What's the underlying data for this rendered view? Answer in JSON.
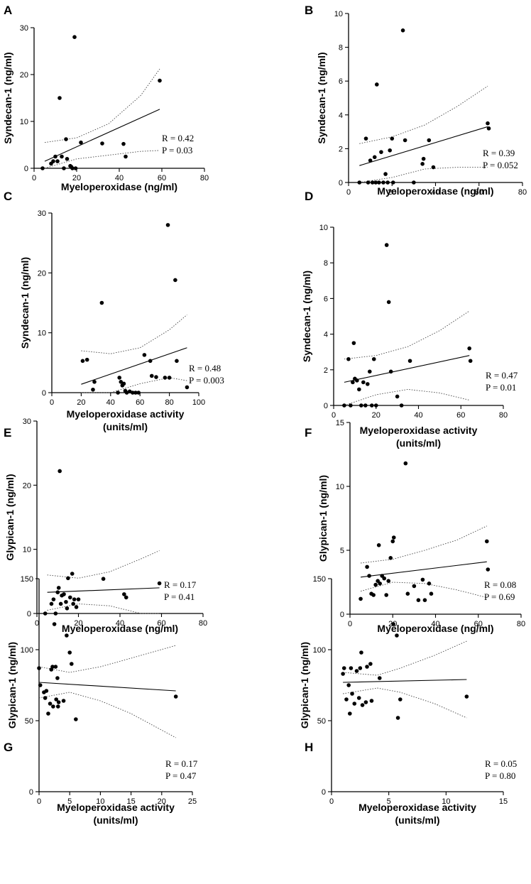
{
  "chart_data": [
    {
      "type": "scatter",
      "panel": "A",
      "xlabel": [
        "Myeloperoxidase (ng/ml)"
      ],
      "ylabel": "Syndecan-1 (ng/ml)",
      "xlim": [
        0,
        80
      ],
      "ylim": [
        0,
        30
      ],
      "xticks": [
        0,
        20,
        40,
        60,
        80
      ],
      "yticks": [
        0,
        10,
        20,
        30
      ],
      "points": [
        [
          4,
          0
        ],
        [
          8,
          1
        ],
        [
          9,
          1.5
        ],
        [
          10,
          2.5
        ],
        [
          11,
          1.5
        ],
        [
          12,
          15
        ],
        [
          13,
          2.5
        ],
        [
          14,
          0
        ],
        [
          15,
          6.2
        ],
        [
          15.5,
          2
        ],
        [
          17,
          0.5
        ],
        [
          17.5,
          0.3
        ],
        [
          18,
          0
        ],
        [
          19,
          28
        ],
        [
          19.5,
          0
        ],
        [
          22,
          5.5
        ],
        [
          32,
          5.3
        ],
        [
          42,
          5.2
        ],
        [
          43,
          2.5
        ],
        [
          59,
          18.7
        ]
      ],
      "fit": [
        [
          5,
          1.5
        ],
        [
          59,
          12.6
        ]
      ],
      "ci_upper": [
        [
          5,
          5.5
        ],
        [
          20,
          6.5
        ],
        [
          35,
          9.5
        ],
        [
          50,
          15.5
        ],
        [
          59,
          21.2
        ]
      ],
      "ci_lower": [
        [
          5,
          -1.5
        ],
        [
          20,
          2
        ],
        [
          35,
          2.8
        ],
        [
          50,
          3.6
        ],
        [
          59,
          3.8
        ]
      ],
      "stats": [
        "R = 0.42",
        "P = 0.03"
      ]
    },
    {
      "type": "scatter",
      "panel": "B",
      "xlabel": [
        "Myeloperoxidase (ng/ml)"
      ],
      "ylabel": "Syndecan-1 (ng/ml)",
      "xlim": [
        0,
        80
      ],
      "ylim": [
        0,
        10
      ],
      "xticks": [
        0,
        20,
        40,
        60,
        80
      ],
      "yticks": [
        0,
        2,
        4,
        6,
        8,
        10
      ],
      "points": [
        [
          5,
          0
        ],
        [
          8,
          2.6
        ],
        [
          9,
          0
        ],
        [
          10,
          1.3
        ],
        [
          11,
          0
        ],
        [
          12,
          1.5
        ],
        [
          12.5,
          0
        ],
        [
          13,
          5.8
        ],
        [
          14,
          0
        ],
        [
          15,
          1.8
        ],
        [
          16,
          0
        ],
        [
          17,
          0.5
        ],
        [
          18,
          0
        ],
        [
          19,
          1.9
        ],
        [
          20,
          2.6
        ],
        [
          20.5,
          0
        ],
        [
          25,
          9
        ],
        [
          26,
          2.5
        ],
        [
          30,
          0
        ],
        [
          34,
          1.1
        ],
        [
          34.5,
          1.4
        ],
        [
          37,
          2.5
        ],
        [
          39,
          0.9
        ],
        [
          64,
          3.5
        ],
        [
          64.5,
          3.2
        ]
      ],
      "fit": [
        [
          5,
          1
        ],
        [
          64,
          3.3
        ]
      ],
      "ci_upper": [
        [
          5,
          2.3
        ],
        [
          20,
          2.7
        ],
        [
          35,
          3.4
        ],
        [
          50,
          4.5
        ],
        [
          64,
          5.7
        ]
      ],
      "ci_lower": [
        [
          5,
          -0.4
        ],
        [
          20,
          0.3
        ],
        [
          35,
          0.8
        ],
        [
          50,
          0.9
        ],
        [
          64,
          0.9
        ]
      ],
      "stats": [
        "R = 0.39",
        "P = 0.052"
      ]
    },
    {
      "type": "scatter",
      "panel": "C",
      "xlabel": [
        "Myeloperoxidase activity",
        "(units/ml)"
      ],
      "ylabel": "Syndecan-1 (ng/ml)",
      "xlim": [
        0,
        100
      ],
      "ylim": [
        0,
        30
      ],
      "xticks": [
        0,
        20,
        40,
        60,
        80,
        100
      ],
      "yticks": [
        0,
        10,
        20,
        30
      ],
      "points": [
        [
          21,
          5.3
        ],
        [
          24,
          5.5
        ],
        [
          28,
          0.5
        ],
        [
          29,
          1.8
        ],
        [
          34,
          15
        ],
        [
          45,
          0
        ],
        [
          46,
          2.5
        ],
        [
          47,
          1.8
        ],
        [
          48,
          1.2
        ],
        [
          49,
          1.5
        ],
        [
          50,
          0.3
        ],
        [
          51,
          0
        ],
        [
          53,
          0.2
        ],
        [
          55,
          0
        ],
        [
          57,
          0
        ],
        [
          59,
          0
        ],
        [
          63,
          6.3
        ],
        [
          67,
          5.3
        ],
        [
          68,
          2.8
        ],
        [
          71,
          2.6
        ],
        [
          77,
          2.5
        ],
        [
          79,
          28
        ],
        [
          80,
          2.5
        ],
        [
          84,
          18.8
        ],
        [
          85,
          5.3
        ],
        [
          92,
          0.9
        ]
      ],
      "fit": [
        [
          20,
          1.4
        ],
        [
          92,
          7.5
        ]
      ],
      "ci_upper": [
        [
          20,
          7
        ],
        [
          40,
          6.5
        ],
        [
          60,
          7.5
        ],
        [
          80,
          10.5
        ],
        [
          92,
          13
        ]
      ],
      "ci_lower": [
        [
          20,
          -4
        ],
        [
          40,
          -0.5
        ],
        [
          60,
          1.5
        ],
        [
          80,
          2.5
        ],
        [
          92,
          2
        ]
      ],
      "stats": [
        "R = 0.48",
        "P = 0.003"
      ]
    },
    {
      "type": "scatter",
      "panel": "D",
      "xlabel": [
        "Myeloperoxidase activity",
        "(units/ml)"
      ],
      "ylabel": "Syndecan-1 (ng/ml)",
      "xlim": [
        0,
        80
      ],
      "ylim": [
        0,
        10
      ],
      "xticks": [
        0,
        20,
        40,
        60,
        80
      ],
      "yticks": [
        0,
        2,
        4,
        6,
        8,
        10
      ],
      "points": [
        [
          5,
          0
        ],
        [
          7,
          2.6
        ],
        [
          8,
          0
        ],
        [
          9,
          1.3
        ],
        [
          9.5,
          3.5
        ],
        [
          10,
          1.5
        ],
        [
          11,
          1.4
        ],
        [
          12,
          0.9
        ],
        [
          13,
          0
        ],
        [
          14,
          1.3
        ],
        [
          15,
          0
        ],
        [
          16,
          1.2
        ],
        [
          17,
          1.9
        ],
        [
          18,
          0
        ],
        [
          19,
          2.6
        ],
        [
          20,
          0
        ],
        [
          25,
          9
        ],
        [
          26,
          5.8
        ],
        [
          27,
          1.9
        ],
        [
          30,
          0.5
        ],
        [
          32,
          0
        ],
        [
          36,
          2.5
        ],
        [
          64,
          3.2
        ],
        [
          64.5,
          2.5
        ]
      ],
      "fit": [
        [
          5,
          1.3
        ],
        [
          64,
          2.8
        ]
      ],
      "ci_upper": [
        [
          5,
          2.6
        ],
        [
          20,
          2.8
        ],
        [
          35,
          3.3
        ],
        [
          50,
          4.2
        ],
        [
          64,
          5.3
        ]
      ],
      "ci_lower": [
        [
          5,
          -0.2
        ],
        [
          20,
          0.6
        ],
        [
          35,
          0.9
        ],
        [
          50,
          0.7
        ],
        [
          64,
          0.3
        ]
      ],
      "stats": [
        "R = 0.47",
        "P = 0.01"
      ]
    },
    {
      "type": "scatter",
      "panel": "E",
      "xlabel": [
        "Myeloperoxidase (ng/ml)"
      ],
      "ylabel": "Glypican-1 (ng/ml)",
      "xlim": [
        0,
        80
      ],
      "ylim": [
        0,
        30
      ],
      "xticks": [
        0,
        20,
        40,
        60,
        80
      ],
      "yticks": [
        0,
        10,
        20,
        30
      ],
      "points": [
        [
          4,
          0
        ],
        [
          7,
          1.5
        ],
        [
          8,
          2.2
        ],
        [
          9,
          0
        ],
        [
          10,
          3.3
        ],
        [
          10.5,
          4
        ],
        [
          11,
          22.2
        ],
        [
          11.5,
          1.5
        ],
        [
          12,
          2.8
        ],
        [
          13,
          3
        ],
        [
          14,
          1.8
        ],
        [
          14.5,
          0.8
        ],
        [
          15,
          5.5
        ],
        [
          16,
          2.5
        ],
        [
          17,
          6.2
        ],
        [
          17.5,
          1.5
        ],
        [
          18,
          2.2
        ],
        [
          19,
          1
        ],
        [
          20,
          2.2
        ],
        [
          32,
          5.4
        ],
        [
          42,
          3
        ],
        [
          43,
          2.5
        ],
        [
          59,
          4.7
        ]
      ],
      "fit": [
        [
          5,
          3.3
        ],
        [
          59,
          4
        ]
      ],
      "ci_upper": [
        [
          5,
          6
        ],
        [
          20,
          5.5
        ],
        [
          35,
          6.5
        ],
        [
          50,
          8.5
        ],
        [
          59,
          9.8
        ]
      ],
      "ci_lower": [
        [
          5,
          0.5
        ],
        [
          20,
          1.5
        ],
        [
          35,
          1.2
        ],
        [
          50,
          0
        ],
        [
          59,
          -1.5
        ]
      ],
      "stats": [
        "R = 0.17",
        "P = 0.41"
      ]
    },
    {
      "type": "scatter",
      "panel": "F",
      "xlabel": [
        "Myeloperoxidase (ng/ml)"
      ],
      "ylabel": "Glypican-1 (ng/ml)",
      "xlim": [
        0,
        80
      ],
      "ylim": [
        0,
        15
      ],
      "xticks": [
        0,
        20,
        40,
        60,
        80
      ],
      "yticks": [
        0,
        5,
        10,
        15
      ],
      "points": [
        [
          5,
          1.2
        ],
        [
          8,
          3.7
        ],
        [
          9,
          3
        ],
        [
          10,
          1.6
        ],
        [
          11,
          1.5
        ],
        [
          12,
          2.3
        ],
        [
          13,
          2.6
        ],
        [
          13.5,
          5.4
        ],
        [
          14,
          2.4
        ],
        [
          15,
          3
        ],
        [
          16,
          2.8
        ],
        [
          17,
          1.5
        ],
        [
          18,
          2.6
        ],
        [
          19,
          4.4
        ],
        [
          20,
          5.7
        ],
        [
          20.5,
          6
        ],
        [
          26,
          11.8
        ],
        [
          27,
          1.6
        ],
        [
          30,
          2.2
        ],
        [
          32,
          1.1
        ],
        [
          34,
          2.7
        ],
        [
          35,
          1.1
        ],
        [
          37,
          2.4
        ],
        [
          38,
          1.6
        ],
        [
          64,
          5.7
        ],
        [
          64.5,
          3.5
        ]
      ],
      "fit": [
        [
          5,
          2.9
        ],
        [
          64,
          4.1
        ]
      ],
      "ci_upper": [
        [
          5,
          4
        ],
        [
          20,
          4.3
        ],
        [
          35,
          5
        ],
        [
          50,
          5.8
        ],
        [
          64,
          6.9
        ]
      ],
      "ci_lower": [
        [
          5,
          1.8
        ],
        [
          20,
          2.5
        ],
        [
          35,
          2.4
        ],
        [
          50,
          1.9
        ],
        [
          64,
          1.3
        ]
      ],
      "stats": [
        "R = 0.08",
        "P = 0.69"
      ]
    },
    {
      "type": "scatter",
      "panel": "G",
      "xlabel": [
        "Myeloperoxidase activity",
        "(units/ml)"
      ],
      "ylabel": "Glypican-1 (ng/ml)",
      "xlim": [
        0,
        25
      ],
      "ylim": [
        0,
        150
      ],
      "xticks": [
        0,
        5,
        10,
        15,
        20,
        25
      ],
      "yticks": [
        0,
        50,
        100,
        150
      ],
      "points": [
        [
          0,
          87
        ],
        [
          0.2,
          75
        ],
        [
          0.8,
          70
        ],
        [
          1,
          66
        ],
        [
          1.2,
          71
        ],
        [
          1.5,
          55
        ],
        [
          1.8,
          62
        ],
        [
          2,
          86
        ],
        [
          2.2,
          88
        ],
        [
          2.3,
          60
        ],
        [
          2.5,
          118
        ],
        [
          2.7,
          88
        ],
        [
          2.8,
          65
        ],
        [
          3,
          80
        ],
        [
          3.1,
          60
        ],
        [
          3.2,
          63
        ],
        [
          4,
          64
        ],
        [
          4.5,
          110
        ],
        [
          5,
          98
        ],
        [
          5.3,
          90
        ],
        [
          6,
          51
        ],
        [
          22.3,
          67
        ]
      ],
      "fit": [
        [
          0,
          77
        ],
        [
          22.3,
          71
        ]
      ],
      "ci_upper": [
        [
          0,
          88
        ],
        [
          5,
          84
        ],
        [
          10,
          88
        ],
        [
          15,
          94
        ],
        [
          22.3,
          103
        ]
      ],
      "ci_lower": [
        [
          0,
          66
        ],
        [
          5,
          70
        ],
        [
          10,
          64
        ],
        [
          15,
          55
        ],
        [
          22.3,
          38
        ]
      ],
      "stats": [
        "R = 0.17",
        "P = 0.47"
      ]
    },
    {
      "type": "scatter",
      "panel": "H",
      "xlabel": [
        "Myeloperoxidase activity",
        "(units/ml)"
      ],
      "ylabel": "Glypican-1 (ng/ml)",
      "xlim": [
        0,
        15
      ],
      "ylim": [
        0,
        150
      ],
      "xticks": [
        0,
        5,
        10,
        15
      ],
      "yticks": [
        0,
        50,
        100,
        150
      ],
      "points": [
        [
          1,
          83
        ],
        [
          1.1,
          87
        ],
        [
          1.3,
          65
        ],
        [
          1.5,
          75
        ],
        [
          1.6,
          55
        ],
        [
          1.7,
          87
        ],
        [
          1.8,
          69
        ],
        [
          2,
          62
        ],
        [
          2.2,
          85
        ],
        [
          2.4,
          66
        ],
        [
          2.5,
          87
        ],
        [
          2.6,
          98
        ],
        [
          2.7,
          61
        ],
        [
          3,
          63
        ],
        [
          3.1,
          88
        ],
        [
          3.4,
          90
        ],
        [
          3.5,
          64
        ],
        [
          4.2,
          80
        ],
        [
          5.4,
          118
        ],
        [
          5.7,
          110
        ],
        [
          5.8,
          52
        ],
        [
          6,
          65
        ],
        [
          11.8,
          67
        ]
      ],
      "fit": [
        [
          1,
          77
        ],
        [
          11.8,
          79
        ]
      ],
      "ci_upper": [
        [
          1,
          84
        ],
        [
          4,
          82
        ],
        [
          6,
          87
        ],
        [
          9,
          96
        ],
        [
          11.8,
          106
        ]
      ],
      "ci_lower": [
        [
          1,
          69
        ],
        [
          4,
          73
        ],
        [
          6,
          70
        ],
        [
          9,
          62
        ],
        [
          11.8,
          52
        ]
      ],
      "stats": [
        "R = 0.05",
        "P = 0.80"
      ]
    }
  ]
}
